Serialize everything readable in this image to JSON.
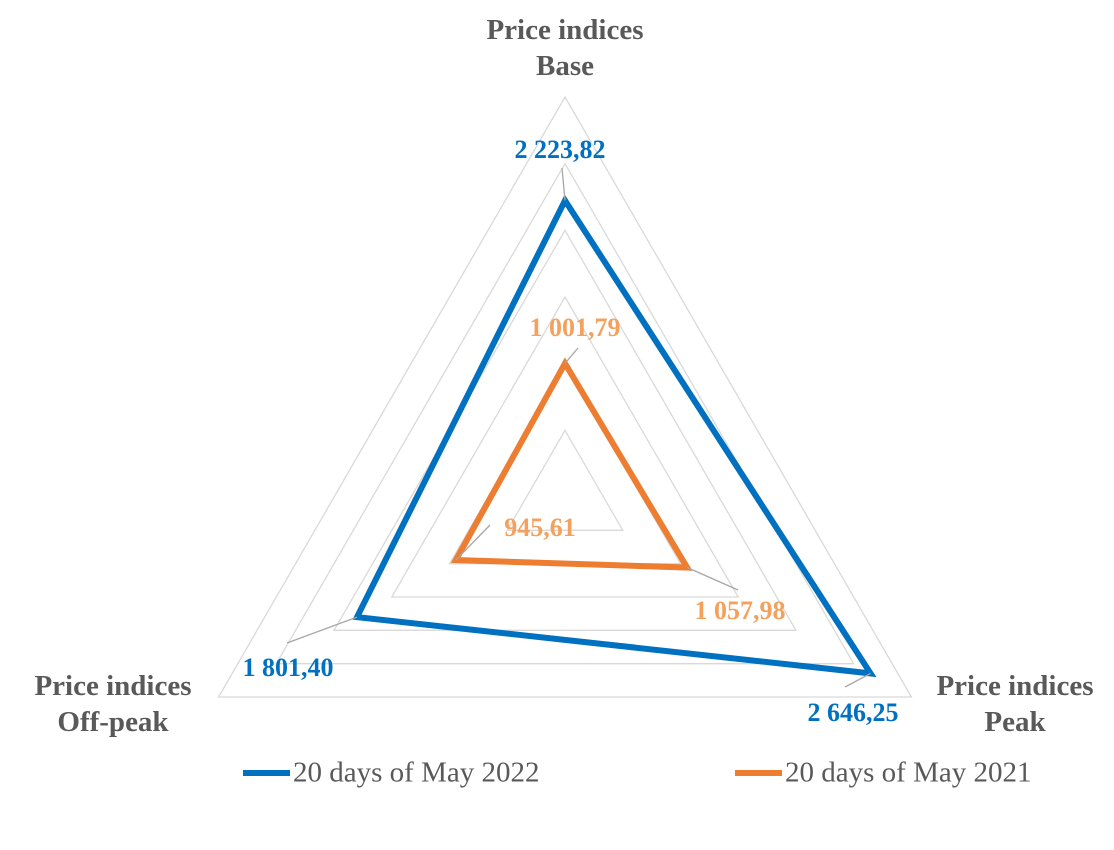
{
  "chart_data": {
    "type": "radar",
    "categories": [
      "Price indices Base",
      "Price indices Peak",
      "Price indices Off-peak"
    ],
    "ylim": [
      0,
      3000
    ],
    "yticks": [
      0,
      500,
      1000,
      1500,
      2000,
      2500,
      3000
    ],
    "grid": true,
    "legend": "bottom",
    "series": [
      {
        "name": "20 days of May 2022",
        "color": "#0070c0",
        "values": [
          2223.82,
          2646.25,
          1801.4
        ],
        "value_labels": [
          "2 223,82",
          "2 646,25",
          "1 801,40"
        ]
      },
      {
        "name": "20 days of May 2021",
        "color": "#ed7d31",
        "values": [
          1001.79,
          1057.98,
          945.61
        ],
        "value_labels": [
          "1 001,79",
          "1 057,98",
          "945,61"
        ]
      }
    ]
  }
}
